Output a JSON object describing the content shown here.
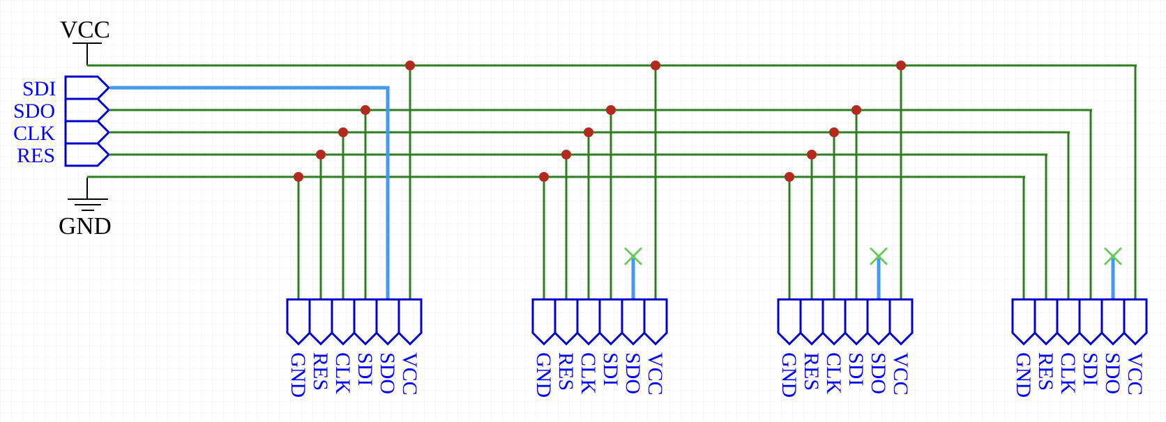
{
  "power": {
    "vcc_label": "VCC",
    "gnd_label": "GND"
  },
  "ports": [
    {
      "label": "SDI"
    },
    {
      "label": "SDO"
    },
    {
      "label": "CLK"
    },
    {
      "label": "RES"
    }
  ],
  "connectors": [
    {
      "pins": [
        "GND",
        "RES",
        "CLK",
        "SDI",
        "SDO",
        "VCC"
      ]
    },
    {
      "pins": [
        "GND",
        "RES",
        "CLK",
        "SDI",
        "SDO",
        "VCC"
      ]
    },
    {
      "pins": [
        "GND",
        "RES",
        "CLK",
        "SDI",
        "SDO",
        "VCC"
      ]
    },
    {
      "pins": [
        "GND",
        "RES",
        "CLK",
        "SDI",
        "SDO",
        "VCC"
      ]
    }
  ],
  "colors": {
    "wire": "#2e7d1f",
    "highlight_wire": "#4499f0",
    "junction": "#b22a1e",
    "symbol": "#0000cc",
    "no_connect": "#66cc55",
    "grid": "#ececec"
  }
}
